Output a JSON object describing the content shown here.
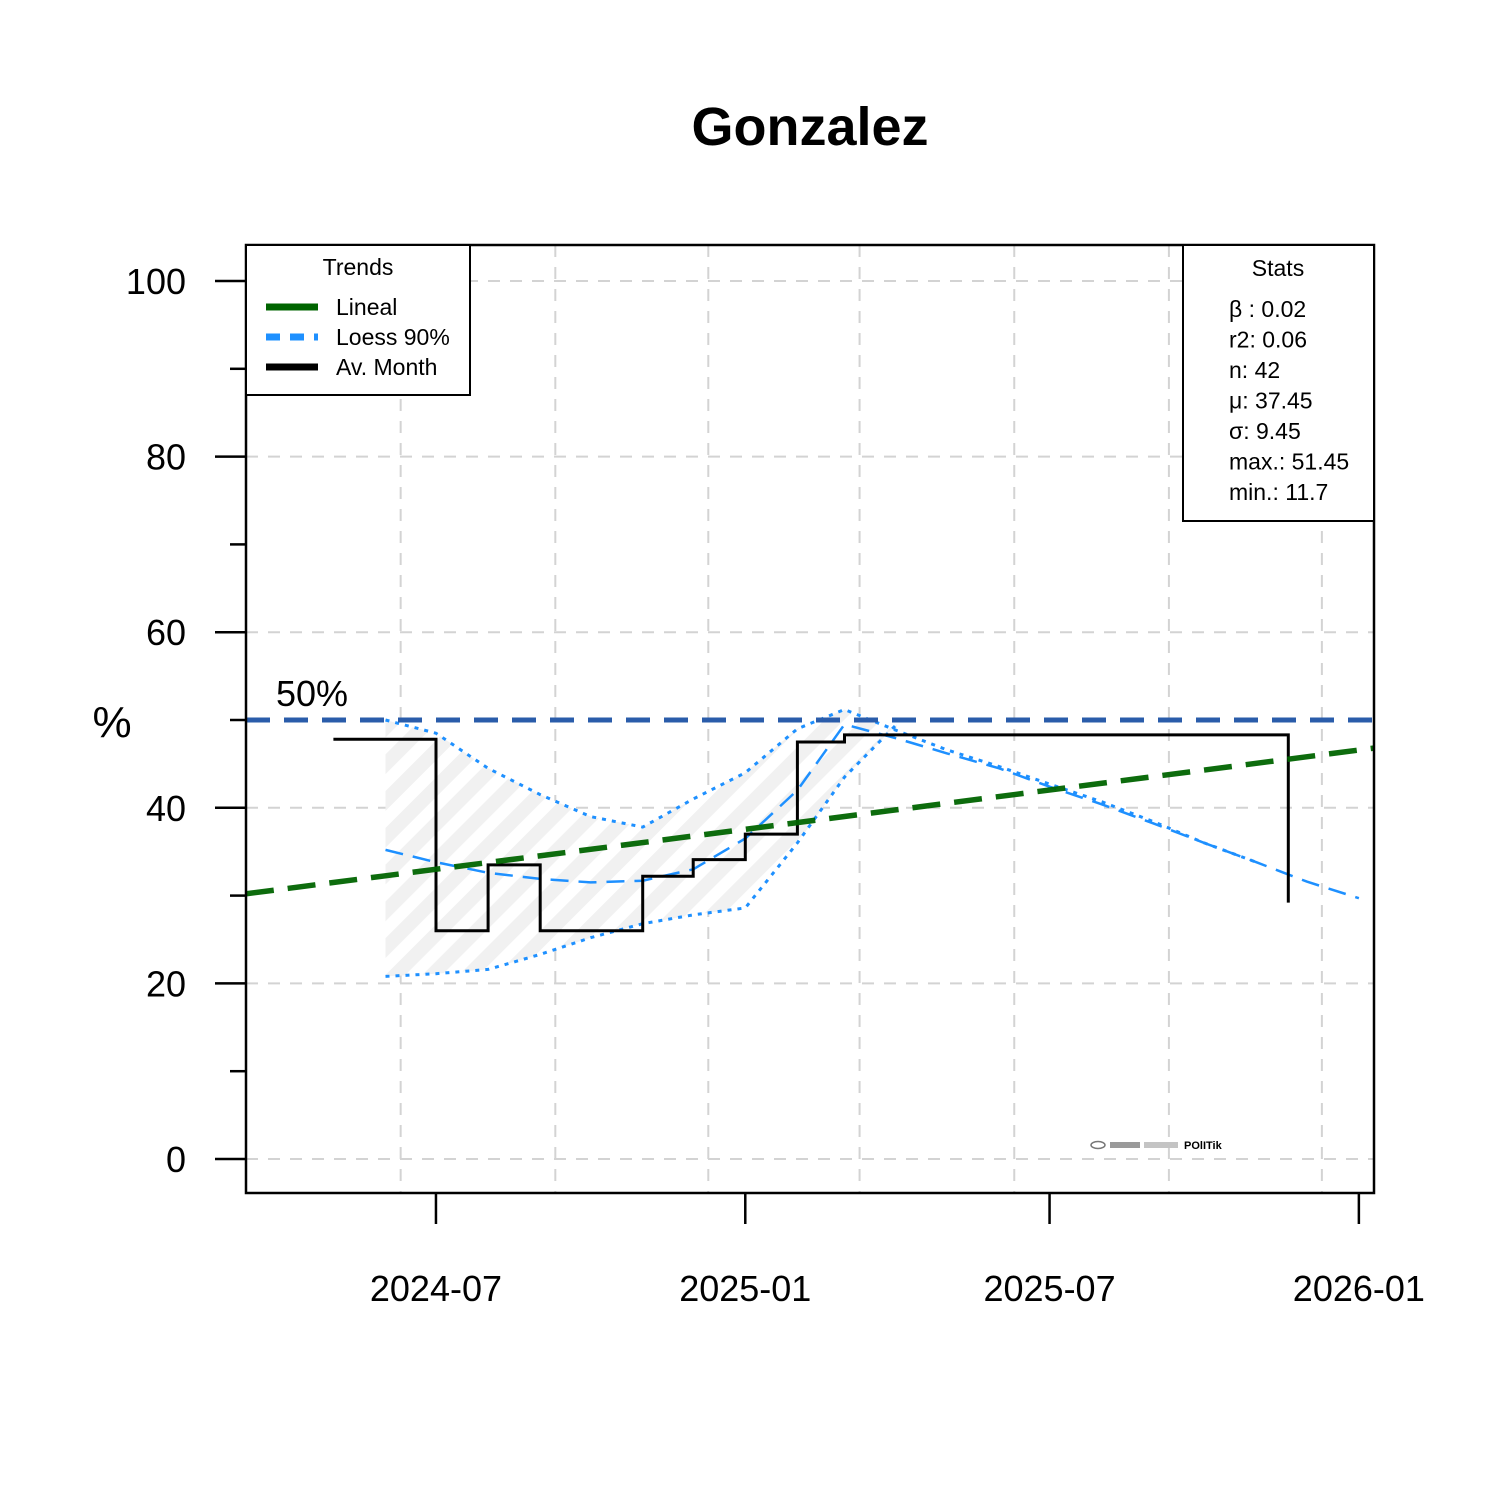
{
  "chart_data": {
    "type": "line",
    "title": "Gonzalez",
    "xlabel": "",
    "ylabel": "%",
    "ylim": [
      0,
      100
    ],
    "xlim": [
      "2024-03-10",
      "2026-01-10"
    ],
    "y_ticks": [
      0,
      20,
      40,
      60,
      80,
      100
    ],
    "x_ticks": [
      "2024-07",
      "2025-01",
      "2025-07",
      "2026-01"
    ],
    "grid": true,
    "reference_line": {
      "value": 50,
      "label": "50%",
      "color": "#2a5caa"
    },
    "legend": {
      "title": "Trends",
      "position": "top-left",
      "entries": [
        {
          "label": "Lineal",
          "color": "#006400",
          "style": "solid"
        },
        {
          "label": "Loess 90%",
          "color": "#1e90ff",
          "style": "dashed"
        },
        {
          "label": "Av. Month",
          "color": "#000000",
          "style": "solid"
        }
      ]
    },
    "stats": {
      "title": "Stats",
      "position": "top-right",
      "lines": [
        "β : 0.02",
        "r2: 0.06",
        "n: 42",
        "μ: 37.45",
        "σ: 9.45",
        "max.: 51.45",
        "min.: 11.7"
      ]
    },
    "series": [
      {
        "name": "Av. Month",
        "type": "step",
        "color": "#000000",
        "x": [
          "2024-05-01",
          "2024-07-01",
          "2024-08-01",
          "2024-09-01",
          "2024-11-01",
          "2024-12-01",
          "2025-01-01",
          "2025-02-01",
          "2025-03-01",
          "2025-11-20",
          "2025-11-20"
        ],
        "y": [
          47.8,
          26,
          33.5,
          26,
          32.2,
          34.1,
          37,
          47.5,
          48.3,
          48.3,
          29.2
        ]
      },
      {
        "name": "Lineal",
        "type": "line",
        "color": "#006400",
        "x": [
          "2024-03-10",
          "2026-01-10"
        ],
        "y": [
          30.2,
          46.8
        ]
      },
      {
        "name": "Loess 90%",
        "type": "line",
        "color": "#1e90ff",
        "x": [
          "2024-06-01",
          "2024-07-01",
          "2024-08-01",
          "2024-09-01",
          "2024-10-01",
          "2024-11-01",
          "2024-12-01",
          "2025-01-01",
          "2025-02-01",
          "2025-03-01",
          "2025-04-01",
          "2025-05-01",
          "2025-06-01",
          "2025-07-01",
          "2025-08-01",
          "2025-09-01",
          "2025-10-01",
          "2025-11-01",
          "2025-12-01",
          "2026-01-01"
        ],
        "y": [
          35.2,
          33.8,
          32.6,
          31.9,
          31.5,
          31.7,
          33.0,
          36.5,
          42.0,
          49.5,
          47.9,
          46.2,
          44.5,
          42.4,
          40.4,
          38.2,
          36.0,
          33.8,
          31.6,
          29.7
        ]
      },
      {
        "name": "Loess upper",
        "type": "line",
        "color": "#1e90ff",
        "x": [
          "2024-06-01",
          "2024-07-01",
          "2024-08-01",
          "2024-09-01",
          "2024-10-01",
          "2024-11-01",
          "2024-12-01",
          "2025-01-01",
          "2025-02-01",
          "2025-03-01",
          "2025-04-01",
          "2025-05-01",
          "2025-06-01",
          "2025-07-01",
          "2025-08-01",
          "2025-09-01",
          "2025-10-01",
          "2025-11-01"
        ],
        "y": [
          50,
          48.5,
          44.5,
          41.5,
          39.0,
          37.8,
          41.0,
          44.0,
          49.0,
          51.2,
          48.8,
          46.6,
          44.7,
          42.7,
          40.7,
          38.4,
          36.0,
          33.8
        ]
      },
      {
        "name": "Loess lower",
        "type": "line",
        "color": "#1e90ff",
        "x": [
          "2024-06-01",
          "2024-07-01",
          "2024-08-01",
          "2024-09-01",
          "2024-10-01",
          "2024-11-01",
          "2024-12-01",
          "2025-01-01",
          "2025-02-01",
          "2025-03-01",
          "2025-04-01"
        ],
        "y": [
          20.8,
          21.1,
          21.6,
          23.3,
          25.2,
          26.8,
          27.8,
          28.6,
          36.0,
          43.5,
          49.5
        ]
      }
    ]
  },
  "logo": {
    "text": "POlITik"
  }
}
